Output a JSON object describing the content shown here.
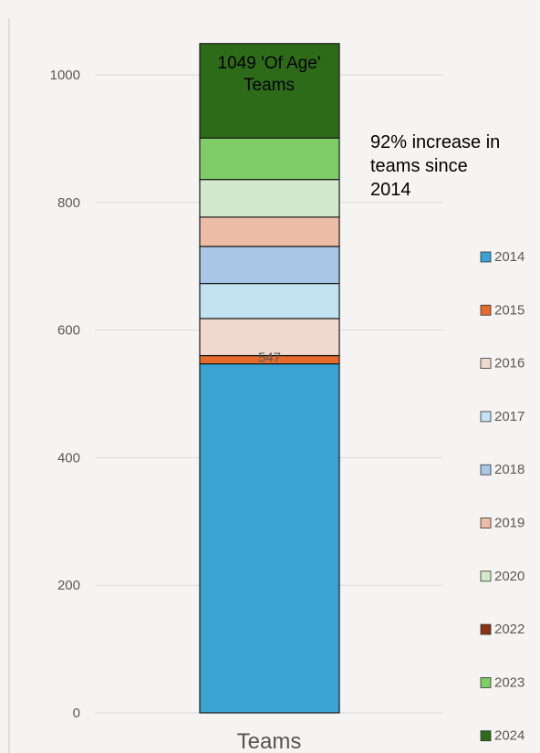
{
  "chart_data": {
    "type": "bar",
    "stacked": true,
    "categories": [
      "Teams"
    ],
    "xlabel": "",
    "ylabel": "",
    "ylim": [
      0,
      1000
    ],
    "yticks": [
      0,
      200,
      400,
      600,
      800,
      1000
    ],
    "grid": true,
    "legend_position": "right",
    "series": [
      {
        "name": "2014",
        "values": [
          547
        ],
        "color": "#3aa3d4"
      },
      {
        "name": "2015",
        "values": [
          13
        ],
        "color": "#e56b2e"
      },
      {
        "name": "2016",
        "values": [
          58
        ],
        "color": "#f1d9d0"
      },
      {
        "name": "2017",
        "values": [
          55
        ],
        "color": "#c2e3f2"
      },
      {
        "name": "2018",
        "values": [
          58
        ],
        "color": "#a9c6e7"
      },
      {
        "name": "2019",
        "values": [
          46
        ],
        "color": "#ecbda4"
      },
      {
        "name": "2020",
        "values": [
          59
        ],
        "color": "#d2e9cc"
      },
      {
        "name": "2022",
        "values": [
          0
        ],
        "color": "#8a3313"
      },
      {
        "name": "2023",
        "values": [
          65
        ],
        "color": "#7fcd68"
      },
      {
        "name": "2024",
        "values": [
          148
        ],
        "color": "#2e6b18"
      }
    ],
    "data_labels": [
      {
        "series": "2014",
        "text": "547"
      }
    ],
    "annotations": {
      "total_label": "1049 'Of Age' Teams",
      "increase_note": "92% increase in teams since 2014"
    }
  }
}
